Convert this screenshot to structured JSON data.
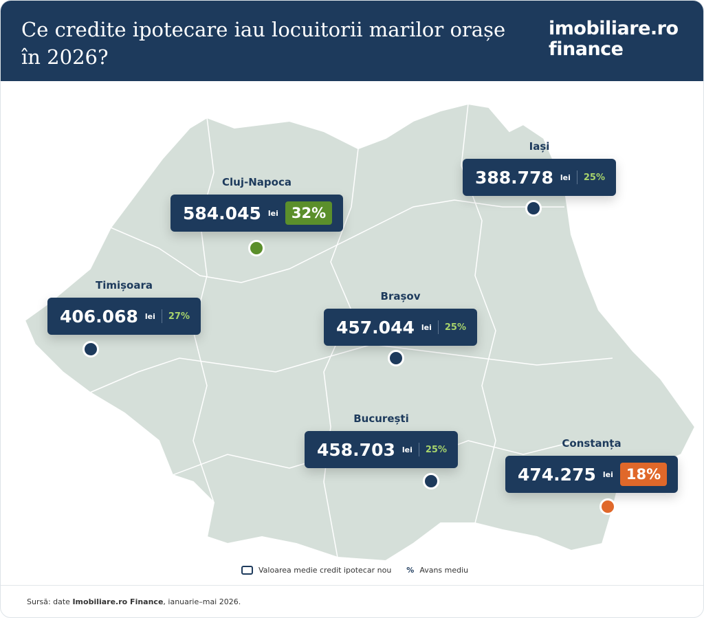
{
  "header": {
    "title": "Ce credite ipotecare iau locuitorii marilor orașe în 2026?",
    "logo_top": "imobiliare.ro",
    "logo_bottom": "finance"
  },
  "unit": "lei",
  "cities": [
    {
      "name": "Cluj-Napoca",
      "value": "584.045",
      "percent": "32%",
      "badge_color": "#5b8f2b",
      "dot_color": "#5b8f2b",
      "box": [
        247,
        282
      ],
      "dot": [
        372,
        360
      ]
    },
    {
      "name": "Iași",
      "value": "388.778",
      "percent": "25%",
      "dot_color": "#1d3a5c",
      "box": [
        672,
        230
      ],
      "dot": [
        775,
        302
      ]
    },
    {
      "name": "Timișoara",
      "value": "406.068",
      "percent": "27%",
      "dot_color": "#1d3a5c",
      "box": [
        68,
        432
      ],
      "dot": [
        131,
        507
      ]
    },
    {
      "name": "Brașov",
      "value": "457.044",
      "percent": "25%",
      "dot_color": "#1d3a5c",
      "box": [
        470,
        448
      ],
      "dot": [
        575,
        520
      ]
    },
    {
      "name": "București",
      "value": "458.703",
      "percent": "25%",
      "dot_color": "#1d3a5c",
      "box": [
        442,
        626
      ],
      "dot": [
        626,
        699
      ]
    },
    {
      "name": "Constanța",
      "value": "474.275",
      "percent": "18%",
      "badge_color": "#e0682a",
      "dot_color": "#e0682a",
      "box": [
        734,
        662
      ],
      "dot": [
        883,
        736
      ]
    }
  ],
  "legend": {
    "box_label": "Valoarea medie credit ipotecar nou",
    "percent_symbol": "%",
    "percent_label": "Avans mediu"
  },
  "source": {
    "prefix": "Sursă: date ",
    "brand": "Imobiliare.ro Finance",
    "suffix": ", ianuarie–mai 2026."
  }
}
